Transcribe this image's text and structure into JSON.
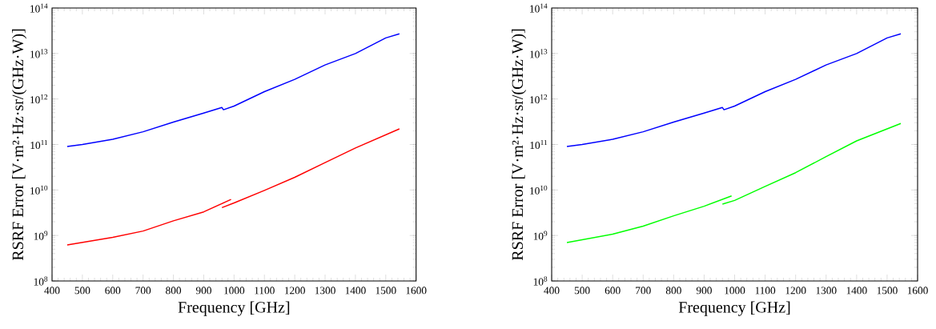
{
  "chart_data": [
    {
      "type": "line",
      "xlabel": "Frequency [GHz]",
      "ylabel": "RSRF Error [V·m²·Hz·sr/(GHz·W)]",
      "log": "y",
      "xlim": [
        400,
        1600
      ],
      "xticks": [
        400,
        500,
        600,
        700,
        800,
        900,
        1000,
        1100,
        1200,
        1300,
        1400,
        1500,
        1600
      ],
      "ylim": [
        100000000.0,
        100000000000000.0
      ],
      "yticks": [
        {
          "value": 100000000.0,
          "label": "10$^{8}$"
        },
        {
          "value": 1000000000.0,
          "label": "10$^{9}$"
        },
        {
          "value": 10000000000.0,
          "label": "10$^{10}$"
        },
        {
          "value": 100000000000.0,
          "label": "10$^{11}$"
        },
        {
          "value": 1000000000000.0,
          "label": "10$^{12}$"
        },
        {
          "value": 10000000000000.0,
          "label": "10$^{13}$"
        },
        {
          "value": 100000000000000.0,
          "label": "10$^{14}$"
        }
      ],
      "series": [
        {
          "color": "#0000ff",
          "x": [
            450,
            500,
            600,
            700,
            800,
            900,
            960,
            965,
            1000,
            1100,
            1200,
            1300,
            1400,
            1500,
            1545
          ],
          "values": [
            90000000000.0,
            100000000000.0,
            130000000000.0,
            190000000000.0,
            310000000000.0,
            490000000000.0,
            650000000000.0,
            580000000000.0,
            700000000000.0,
            1450000000000.0,
            2700000000000.0,
            5600000000000.0,
            10000000000000.0,
            22000000000000.0,
            27000000000000.0
          ]
        },
        {
          "color": "#ff0000",
          "x": [
            450,
            600,
            700,
            800,
            900,
            990,
            975,
            960,
            1000,
            1100,
            1200,
            1300,
            1400,
            1545
          ],
          "values": [
            620000000.0,
            910000000.0,
            1250000000.0,
            2100000000.0,
            3300000000.0,
            6200000000.0,
            null,
            4100000000.0,
            5200000000.0,
            9800000000.0,
            19000000000.0,
            40000000000.0,
            84000000000.0,
            220000000000.0
          ]
        }
      ]
    },
    {
      "type": "line",
      "xlabel": "Frequency [GHz]",
      "ylabel": "RSRF Error [V·m²·Hz·sr/(GHz·W)]",
      "log": "y",
      "xlim": [
        400,
        1600
      ],
      "xticks": [
        400,
        500,
        600,
        700,
        800,
        900,
        1000,
        1100,
        1200,
        1300,
        1400,
        1500,
        1600
      ],
      "ylim": [
        100000000.0,
        100000000000000.0
      ],
      "yticks": [
        {
          "value": 100000000.0,
          "label": "10$^{8}$"
        },
        {
          "value": 1000000000.0,
          "label": "10$^{9}$"
        },
        {
          "value": 10000000000.0,
          "label": "10$^{10}$"
        },
        {
          "value": 100000000000.0,
          "label": "10$^{11}$"
        },
        {
          "value": 1000000000000.0,
          "label": "10$^{12}$"
        },
        {
          "value": 10000000000000.0,
          "label": "10$^{13}$"
        },
        {
          "value": 100000000000000.0,
          "label": "10$^{14}$"
        }
      ],
      "series": [
        {
          "color": "#0000ff",
          "x": [
            450,
            500,
            600,
            700,
            800,
            900,
            960,
            965,
            1000,
            1100,
            1200,
            1300,
            1400,
            1500,
            1545
          ],
          "values": [
            90000000000.0,
            100000000000.0,
            130000000000.0,
            190000000000.0,
            310000000000.0,
            490000000000.0,
            650000000000.0,
            580000000000.0,
            700000000000.0,
            1450000000000.0,
            2700000000000.0,
            5600000000000.0,
            10000000000000.0,
            22000000000000.0,
            27000000000000.0
          ]
        },
        {
          "color": "#00ff00",
          "x": [
            450,
            600,
            700,
            800,
            900,
            990,
            975,
            960,
            1000,
            1100,
            1200,
            1300,
            1400,
            1545
          ],
          "values": [
            700000000.0,
            1070000000.0,
            1600000000.0,
            2700000000.0,
            4400000000.0,
            7400000000.0,
            null,
            4900000000.0,
            5900000000.0,
            12000000000.0,
            24000000000.0,
            54000000000.0,
            120000000000.0,
            290000000000.0
          ]
        }
      ]
    }
  ]
}
